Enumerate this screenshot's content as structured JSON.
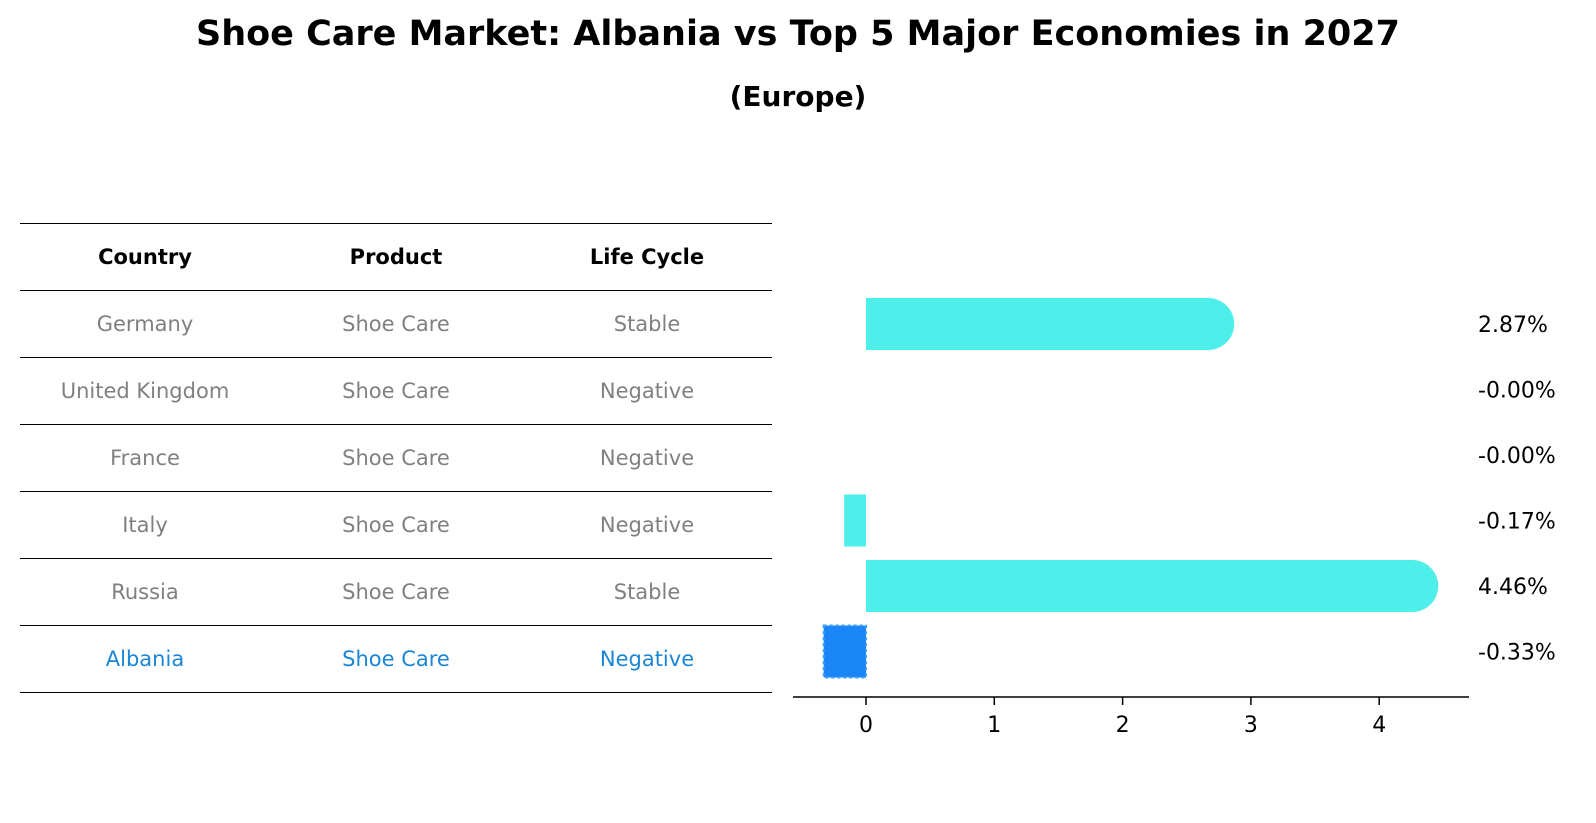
{
  "title": "Shoe Care Market: Albania vs Top 5 Major Economies in 2027",
  "subtitle": "(Europe)",
  "table": {
    "headers": [
      "Country",
      "Product",
      "Life Cycle"
    ],
    "rows": [
      [
        "Germany",
        "Shoe Care",
        "Stable"
      ],
      [
        "United Kingdom",
        "Shoe Care",
        "Negative"
      ],
      [
        "France",
        "Shoe Care",
        "Negative"
      ],
      [
        "Italy",
        "Shoe Care",
        "Negative"
      ],
      [
        "Russia",
        "Shoe Care",
        "Stable"
      ],
      [
        "Albania",
        "Shoe Care",
        "Negative"
      ]
    ],
    "highlight_row": 5,
    "highlight_color": "#1a86d6",
    "text_color": "#808080"
  },
  "chart_data": {
    "type": "bar",
    "orientation": "horizontal",
    "categories": [
      "Germany",
      "United Kingdom",
      "France",
      "Italy",
      "Russia",
      "Albania"
    ],
    "values": [
      2.87,
      -0.0,
      -0.0,
      -0.17,
      4.46,
      -0.33
    ],
    "value_labels": [
      "2.87%",
      "-0.00%",
      "-0.00%",
      "-0.17%",
      "4.46%",
      "-0.33%"
    ],
    "xlim": [
      -0.57,
      4.7
    ],
    "xticks": [
      0,
      1,
      2,
      3,
      4
    ],
    "colors": {
      "bar": "#4eeeea",
      "highlight": "#1a86f5"
    },
    "highlight_index": 5,
    "grid": false
  }
}
